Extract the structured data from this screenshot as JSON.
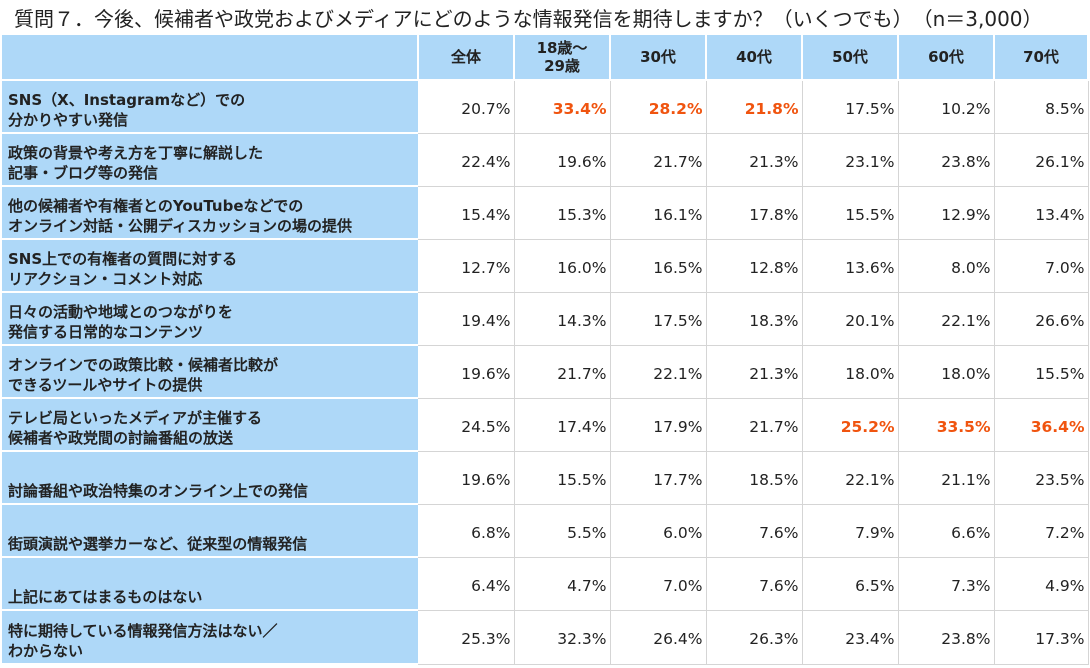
{
  "title": "質問７．今後、候補者や政党およびメディアにどのような情報発信を期待しますか？（いくつでも）　（n＝3,000）",
  "colors": {
    "header_bg": "#aed8f8",
    "highlight": "#f0540f"
  },
  "chart_data": {
    "type": "table",
    "columns": [
      "全体",
      "18歳～29歳",
      "30代",
      "40代",
      "50代",
      "60代",
      "70代"
    ],
    "rows": [
      {
        "label_lines": [
          "SNS（X、Instagramなど）での",
          "分かりやすい発信"
        ],
        "values": [
          "20.7%",
          "33.4%",
          "28.2%",
          "21.8%",
          "17.5%",
          "10.2%",
          "8.5%"
        ],
        "highlight": [
          false,
          true,
          true,
          true,
          false,
          false,
          false
        ]
      },
      {
        "label_lines": [
          "政策の背景や考え方を丁寧に解説した",
          "記事・ブログ等の発信"
        ],
        "values": [
          "22.4%",
          "19.6%",
          "21.7%",
          "21.3%",
          "23.1%",
          "23.8%",
          "26.1%"
        ],
        "highlight": [
          false,
          false,
          false,
          false,
          false,
          false,
          false
        ]
      },
      {
        "label_lines": [
          "他の候補者や有権者とのYouTubeなどでの",
          "オンライン対話・公開ディスカッションの場の提供"
        ],
        "values": [
          "15.4%",
          "15.3%",
          "16.1%",
          "17.8%",
          "15.5%",
          "12.9%",
          "13.4%"
        ],
        "highlight": [
          false,
          false,
          false,
          false,
          false,
          false,
          false
        ]
      },
      {
        "label_lines": [
          "SNS上での有権者の質問に対する",
          "リアクション・コメント対応"
        ],
        "values": [
          "12.7%",
          "16.0%",
          "16.5%",
          "12.8%",
          "13.6%",
          "8.0%",
          "7.0%"
        ],
        "highlight": [
          false,
          false,
          false,
          false,
          false,
          false,
          false
        ]
      },
      {
        "label_lines": [
          "日々の活動や地域とのつながりを",
          "発信する日常的なコンテンツ"
        ],
        "values": [
          "19.4%",
          "14.3%",
          "17.5%",
          "18.3%",
          "20.1%",
          "22.1%",
          "26.6%"
        ],
        "highlight": [
          false,
          false,
          false,
          false,
          false,
          false,
          false
        ]
      },
      {
        "label_lines": [
          "オンラインでの政策比較・候補者比較が",
          "できるツールやサイトの提供"
        ],
        "values": [
          "19.6%",
          "21.7%",
          "22.1%",
          "21.3%",
          "18.0%",
          "18.0%",
          "15.5%"
        ],
        "highlight": [
          false,
          false,
          false,
          false,
          false,
          false,
          false
        ]
      },
      {
        "label_lines": [
          "テレビ局といったメディアが主催する",
          "候補者や政党間の討論番組の放送"
        ],
        "values": [
          "24.5%",
          "17.4%",
          "17.9%",
          "21.7%",
          "25.2%",
          "33.5%",
          "36.4%"
        ],
        "highlight": [
          false,
          false,
          false,
          false,
          true,
          true,
          true
        ]
      },
      {
        "label_lines": [
          "討論番組や政治特集のオンライン上での発信"
        ],
        "values": [
          "19.6%",
          "15.5%",
          "17.7%",
          "18.5%",
          "22.1%",
          "21.1%",
          "23.5%"
        ],
        "highlight": [
          false,
          false,
          false,
          false,
          false,
          false,
          false
        ]
      },
      {
        "label_lines": [
          "街頭演説や選挙カーなど、従来型の情報発信"
        ],
        "values": [
          "6.8%",
          "5.5%",
          "6.0%",
          "7.6%",
          "7.9%",
          "6.6%",
          "7.2%"
        ],
        "highlight": [
          false,
          false,
          false,
          false,
          false,
          false,
          false
        ]
      },
      {
        "label_lines": [
          "上記にあてはまるものはない"
        ],
        "values": [
          "6.4%",
          "4.7%",
          "7.0%",
          "7.6%",
          "6.5%",
          "7.3%",
          "4.9%"
        ],
        "highlight": [
          false,
          false,
          false,
          false,
          false,
          false,
          false
        ]
      },
      {
        "label_lines": [
          "特に期待している情報発信方法はない／",
          "わからない"
        ],
        "values": [
          "25.3%",
          "32.3%",
          "26.4%",
          "26.3%",
          "23.4%",
          "23.8%",
          "17.3%"
        ],
        "highlight": [
          false,
          false,
          false,
          false,
          false,
          false,
          false
        ]
      }
    ]
  }
}
